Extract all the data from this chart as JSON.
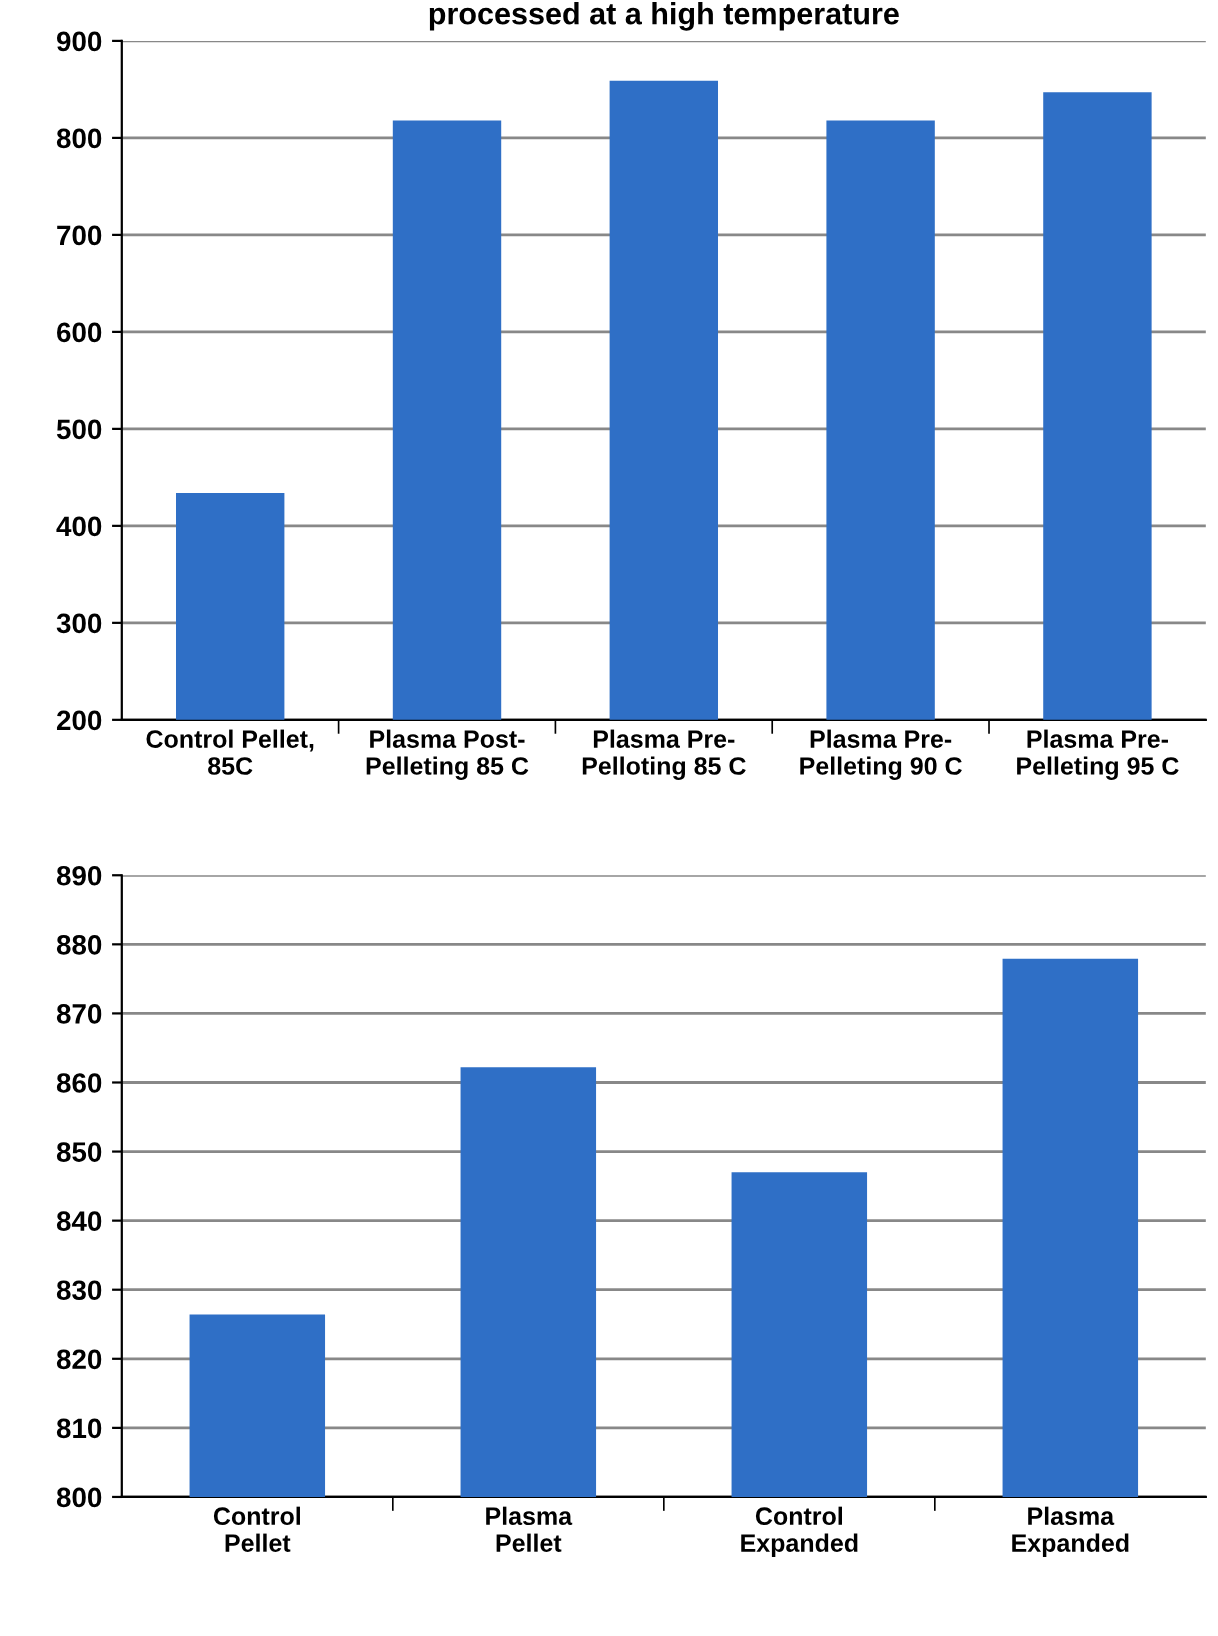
{
  "chart_data": [
    {
      "type": "bar",
      "title": "processed at a high temperature",
      "categories": [
        "Control Pellet,\n85C",
        "Plasma Post-\nPelleting 85 C",
        "Plasma Pre-\nPelloting 85 C",
        "Plasma Pre-\nPelleting 90 C",
        "Plasma Pre-\nPelleting 95 C"
      ],
      "values": [
        434,
        818,
        859,
        818,
        847
      ],
      "color": "#2f6fc6",
      "ylim": [
        200,
        900
      ],
      "yticks": [
        200,
        300,
        400,
        500,
        600,
        700,
        800,
        900
      ],
      "grid": "y"
    },
    {
      "type": "bar",
      "categories": [
        "Control\nPellet",
        "Plasma\nPellet",
        "Control\nExpanded",
        "Plasma\nExpanded"
      ],
      "values": [
        826.4,
        862.2,
        847,
        877.9
      ],
      "color": "#2f6fc6",
      "ylim": [
        800,
        890
      ],
      "yticks": [
        800,
        810,
        820,
        830,
        840,
        850,
        860,
        870,
        880,
        890
      ],
      "grid": "y"
    }
  ]
}
